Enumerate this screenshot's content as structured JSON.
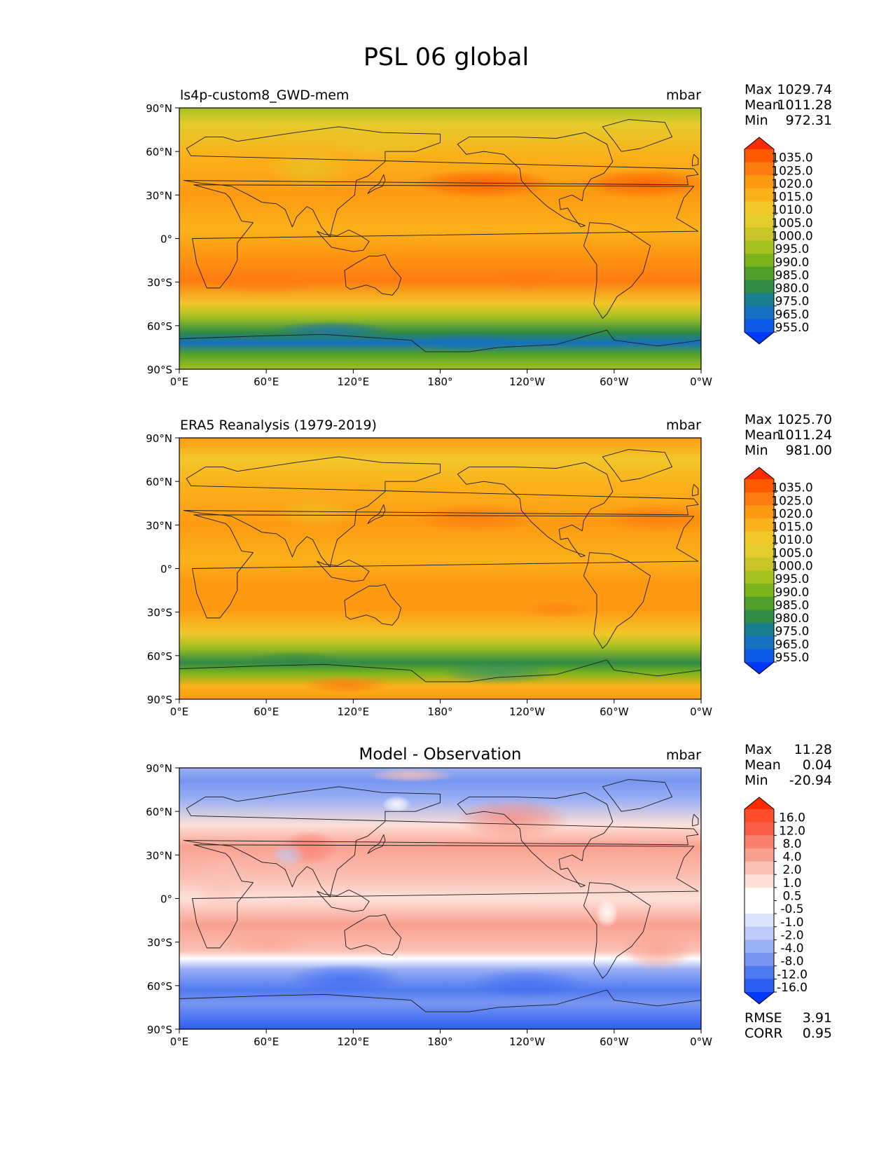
{
  "title": "PSL 06 global",
  "x_ticks": [
    "0°E",
    "60°E",
    "120°E",
    "180°",
    "120°W",
    "60°W",
    "0°W"
  ],
  "y_ticks": [
    "90°N",
    "60°N",
    "30°N",
    "0°",
    "30°S",
    "60°S",
    "90°S"
  ],
  "stat_labels": {
    "max": "Max",
    "mean": "Mean",
    "min": "Min"
  },
  "chart_data": [
    {
      "type": "heatmap",
      "title": "ls4p-custom8_GWD-mem",
      "units": "mbar",
      "xlim": [
        0,
        360
      ],
      "ylim": [
        -90,
        90
      ],
      "stats": {
        "max": "1029.74",
        "mean": "1011.28",
        "min": "972.31"
      },
      "colorbar": {
        "labels": [
          "1035.0",
          "1025.0",
          "1020.0",
          "1015.0",
          "1010.0",
          "1005.0",
          "1000.0",
          "995.0",
          "990.0",
          "985.0",
          "980.0",
          "975.0",
          "965.0",
          "955.0"
        ],
        "colors": [
          "#ff2a00",
          "#ff5a00",
          "#fe7b10",
          "#fe9a12",
          "#fbb11a",
          "#f2c72a",
          "#e4cc2c",
          "#c9c528",
          "#a4c021",
          "#7bb41a",
          "#4f9f2a",
          "#2f8a45",
          "#197f8f",
          "#1670c0",
          "#0d5ae6",
          "#0037ff"
        ]
      }
    },
    {
      "type": "heatmap",
      "title": "ERA5 Reanalysis (1979-2019)",
      "units": "mbar",
      "xlim": [
        0,
        360
      ],
      "ylim": [
        -90,
        90
      ],
      "stats": {
        "max": "1025.70",
        "mean": "1011.24",
        "min": "981.00"
      },
      "colorbar": {
        "labels": [
          "1035.0",
          "1025.0",
          "1020.0",
          "1015.0",
          "1010.0",
          "1005.0",
          "1000.0",
          "995.0",
          "990.0",
          "985.0",
          "980.0",
          "975.0",
          "965.0",
          "955.0"
        ],
        "colors": [
          "#ff2a00",
          "#ff5a00",
          "#fe7b10",
          "#fe9a12",
          "#fbb11a",
          "#f2c72a",
          "#e4cc2c",
          "#c9c528",
          "#a4c021",
          "#7bb41a",
          "#4f9f2a",
          "#2f8a45",
          "#197f8f",
          "#1670c0",
          "#0d5ae6",
          "#0037ff"
        ]
      }
    },
    {
      "type": "heatmap",
      "title": "Model - Observation",
      "units": "mbar",
      "xlim": [
        0,
        360
      ],
      "ylim": [
        -90,
        90
      ],
      "stats": {
        "max": "11.28",
        "mean": "0.04",
        "min": "-20.94"
      },
      "metrics": {
        "rmse_label": "RMSE",
        "rmse": "3.91",
        "corr_label": "CORR",
        "corr": "0.95"
      },
      "colorbar": {
        "labels": [
          "16.0",
          "12.0",
          "8.0",
          "4.0",
          "2.0",
          "1.0",
          "0.5",
          "-0.5",
          "-1.0",
          "-2.0",
          "-4.0",
          "-8.0",
          "-12.0",
          "-16.0"
        ],
        "colors": [
          "#ff2a00",
          "#ff4c2a",
          "#fb5e48",
          "#f9806f",
          "#f9a191",
          "#fbc0b4",
          "#fde0d8",
          "#ffffff",
          "#ffffff",
          "#dbe3fc",
          "#bccbf8",
          "#99aff4",
          "#7896f1",
          "#4f79f0",
          "#2d5ef2",
          "#0037ff"
        ]
      }
    }
  ]
}
